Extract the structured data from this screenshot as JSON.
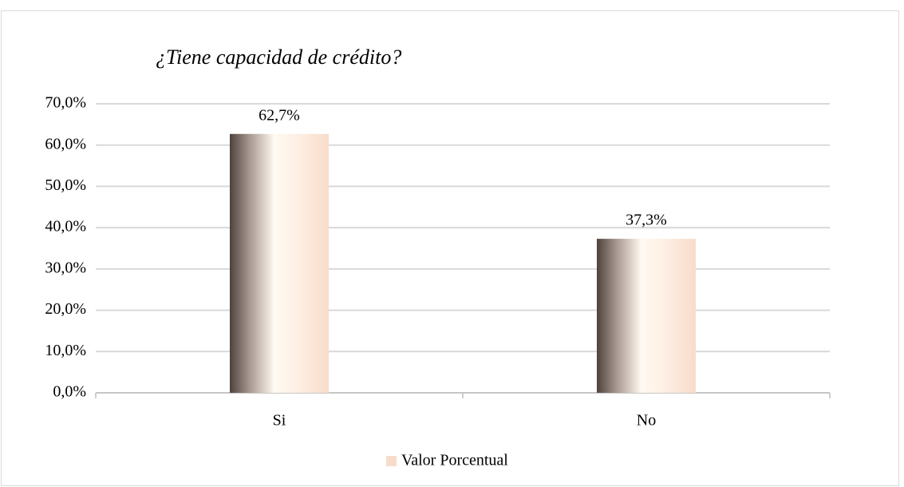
{
  "chart_data": {
    "type": "bar",
    "title": "¿Tiene capacidad de crédito?",
    "categories": [
      "Si",
      "No"
    ],
    "series": [
      {
        "name": "Valor Porcentual",
        "color": "#f8dccb",
        "values": [
          62.7,
          37.3
        ],
        "value_labels": [
          "62,7%",
          "37,3%"
        ]
      }
    ],
    "ylim": [
      0,
      70
    ],
    "yticks": [
      {
        "value": 0,
        "label": "0,0%"
      },
      {
        "value": 10,
        "label": "10,0%"
      },
      {
        "value": 20,
        "label": "20,0%"
      },
      {
        "value": 30,
        "label": "30,0%"
      },
      {
        "value": 40,
        "label": "40,0%"
      },
      {
        "value": 50,
        "label": "50,0%"
      },
      {
        "value": 60,
        "label": "60,0%"
      },
      {
        "value": 70,
        "label": "70,0%"
      }
    ],
    "grid": true,
    "legend": "bottom"
  }
}
